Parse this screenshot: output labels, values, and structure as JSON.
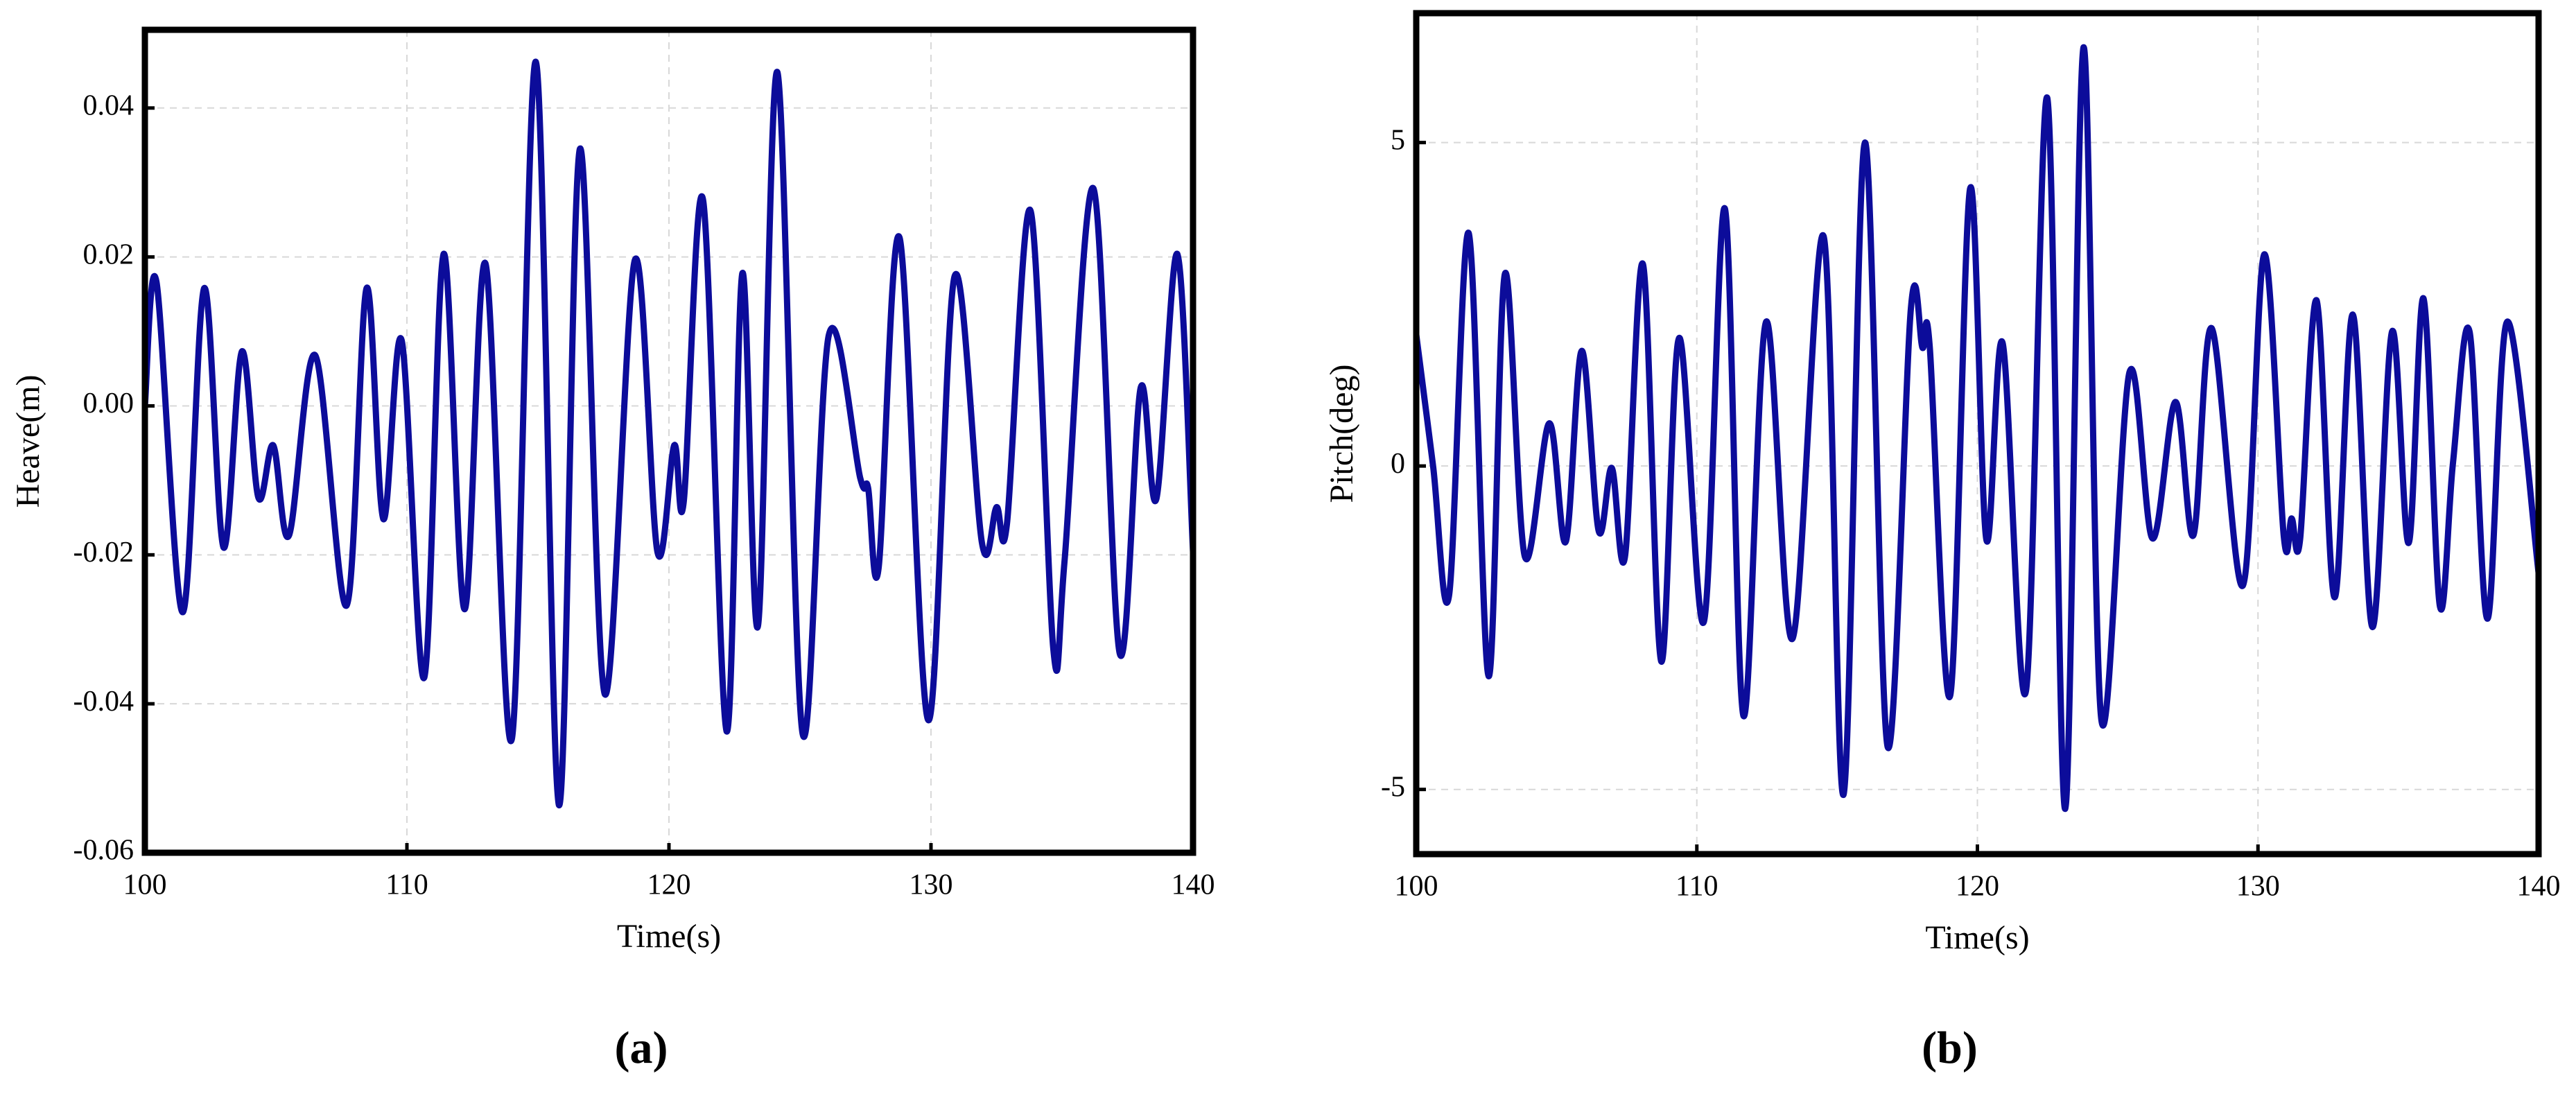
{
  "chart_data": [
    {
      "type": "line",
      "caption": "(a)",
      "xlabel": "Time(s)",
      "ylabel": "Heave(m)",
      "color": "#0c0c9a",
      "grid": true,
      "xlim": [
        100,
        140
      ],
      "xticks": [
        100,
        110,
        120,
        130,
        140
      ],
      "ylim": [
        -0.06,
        0.0505
      ],
      "yticks": [
        -0.06,
        -0.04,
        -0.02,
        {
          "value": 0,
          "label": "0.00"
        },
        0.02,
        0.04
      ],
      "x": [
        100,
        100.44,
        101.44,
        102.26,
        103.0,
        103.7,
        104.33,
        104.9,
        105.5,
        106.5,
        107.7,
        108.46,
        109.1,
        109.8,
        110.66,
        111.4,
        112.2,
        113.0,
        114.0,
        114.92,
        115.8,
        116.6,
        117.55,
        118.7,
        119.56,
        120.2,
        120.56,
        121.3,
        122.2,
        122.8,
        123.4,
        124.14,
        125.1,
        126.1,
        127.3,
        127.6,
        128.0,
        128.8,
        129.9,
        130.9,
        131.95,
        132.5,
        132.9,
        133.8,
        134.67,
        135.1,
        136.2,
        137.2,
        138.0,
        138.6,
        139.4,
        140
      ],
      "values": [
        0,
        0.0167,
        -0.0277,
        0.0158,
        -0.019,
        0.0073,
        -0.0123,
        -0.0053,
        -0.0174,
        0.0068,
        -0.0268,
        0.0158,
        -0.0152,
        0.0088,
        -0.0365,
        0.0204,
        -0.0273,
        0.0191,
        -0.0448,
        0.0462,
        -0.0536,
        0.0345,
        -0.0387,
        0.0196,
        -0.0196,
        -0.0053,
        -0.013,
        0.0277,
        -0.0437,
        0.0178,
        -0.0295,
        0.0448,
        -0.044,
        0.0095,
        -0.0097,
        -0.011,
        -0.0218,
        0.0226,
        -0.0422,
        0.0174,
        -0.0185,
        -0.0136,
        -0.0158,
        0.0262,
        -0.0327,
        -0.0207,
        0.0292,
        -0.0332,
        0.0024,
        -0.0125,
        0.0204,
        -0.0196
      ]
    },
    {
      "type": "line",
      "caption": "(b)",
      "xlabel": "Time(s)",
      "ylabel": "Pitch(deg)",
      "color": "#0c0c9a",
      "grid": true,
      "xlim": [
        100,
        140
      ],
      "xticks": [
        100,
        110,
        120,
        130,
        140
      ],
      "ylim": [
        -6,
        7
      ],
      "yticks": [
        -5,
        0,
        5
      ],
      "x": [
        100,
        100.6,
        101.17,
        101.87,
        102.58,
        103.16,
        103.87,
        104.74,
        105.33,
        105.9,
        106.5,
        106.97,
        107.44,
        108.08,
        108.73,
        109.37,
        110.25,
        111.0,
        111.66,
        112.47,
        113.41,
        114.52,
        115.23,
        115.99,
        116.8,
        117.63,
        118.04,
        118.3,
        119.03,
        119.74,
        120.32,
        120.9,
        121.73,
        122.49,
        123.13,
        123.78,
        124.42,
        125.42,
        126.24,
        127.06,
        127.7,
        128.35,
        129.46,
        130.22,
        130.92,
        131.2,
        131.5,
        132.09,
        132.73,
        133.38,
        134.08,
        134.78,
        135.37,
        135.9,
        136.48,
        136.95,
        137.54,
        138.18,
        138.88,
        140
      ],
      "values": [
        2.03,
        0,
        -2.0,
        3.6,
        -3.25,
        2.97,
        -1.4,
        0.66,
        -1.17,
        1.78,
        -1.0,
        -0.03,
        -1.4,
        3.12,
        -3.02,
        1.98,
        -2.41,
        3.98,
        -3.86,
        2.23,
        -2.67,
        3.55,
        -5.08,
        5.0,
        -4.34,
        2.44,
        1.83,
        1.85,
        -3.55,
        4.29,
        -1.14,
        1.9,
        -3.48,
        5.69,
        -5.3,
        6.47,
        -3.93,
        1.45,
        -1.12,
        0.99,
        -1.07,
        2.13,
        -1.85,
        3.27,
        -1.09,
        -0.81,
        -1.14,
        2.56,
        -2.03,
        2.34,
        -2.49,
        2.08,
        -1.19,
        2.59,
        -2.16,
        0.05,
        2.08,
        -2.36,
        2.23,
        -1.65
      ]
    }
  ]
}
